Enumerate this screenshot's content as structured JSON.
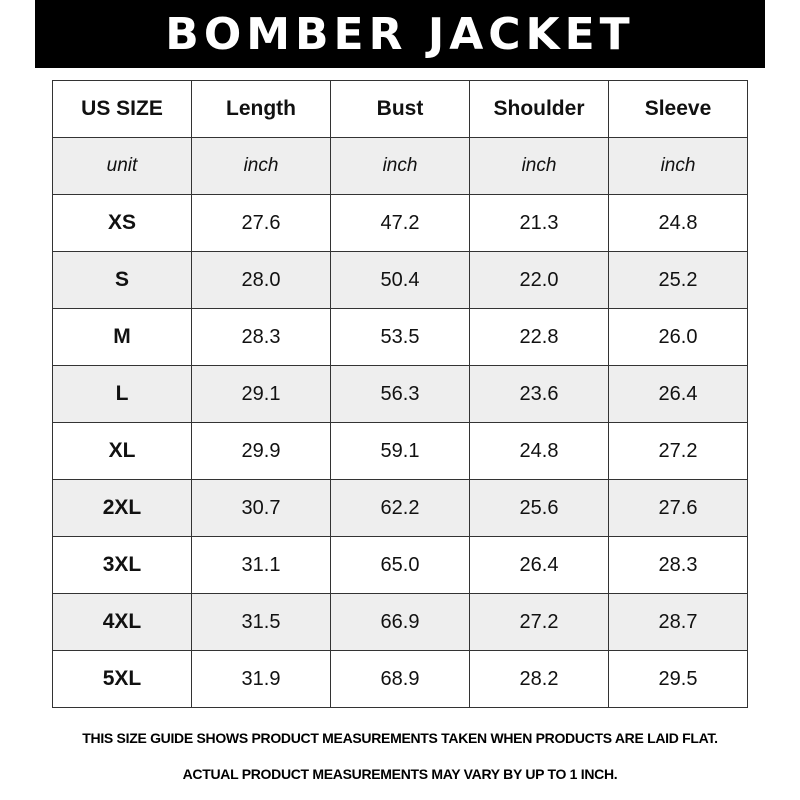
{
  "title": "BOMBER JACKET",
  "columns": [
    "US SIZE",
    "Length",
    "Bust",
    "Shoulder",
    "Sleeve"
  ],
  "units": [
    "unit",
    "inch",
    "inch",
    "inch",
    "inch"
  ],
  "rows": [
    [
      "XS",
      "27.6",
      "47.2",
      "21.3",
      "24.8"
    ],
    [
      "S",
      "28.0",
      "50.4",
      "22.0",
      "25.2"
    ],
    [
      "M",
      "28.3",
      "53.5",
      "22.8",
      "26.0"
    ],
    [
      "L",
      "29.1",
      "56.3",
      "23.6",
      "26.4"
    ],
    [
      "XL",
      "29.9",
      "59.1",
      "24.8",
      "27.2"
    ],
    [
      "2XL",
      "30.7",
      "62.2",
      "25.6",
      "27.6"
    ],
    [
      "3XL",
      "31.1",
      "65.0",
      "26.4",
      "28.3"
    ],
    [
      "4XL",
      "31.5",
      "66.9",
      "27.2",
      "28.7"
    ],
    [
      "5XL",
      "31.9",
      "68.9",
      "28.2",
      "29.5"
    ]
  ],
  "notes": [
    "THIS SIZE GUIDE SHOWS PRODUCT MEASUREMENTS TAKEN WHEN PRODUCTS ARE LAID FLAT.",
    "ACTUAL PRODUCT MEASUREMENTS MAY VARY BY UP TO 1 INCH."
  ],
  "colors": {
    "banner": "#000000",
    "alt_row": "#eeeeee",
    "border": "#333333"
  }
}
